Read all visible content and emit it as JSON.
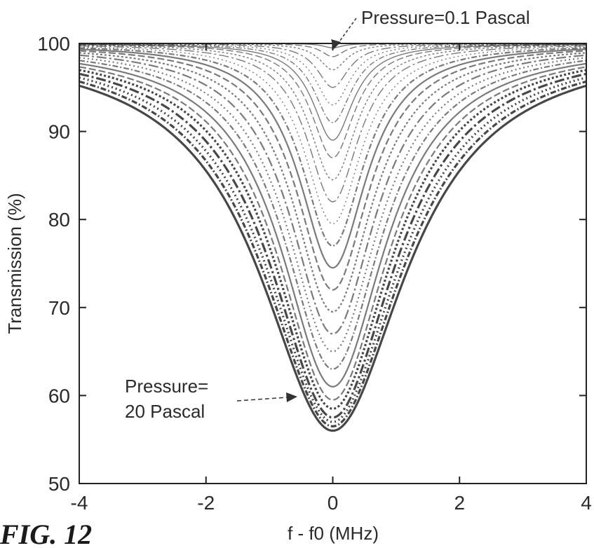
{
  "chart_data": {
    "type": "line",
    "xlabel": "f - f0 (MHz)",
    "ylabel": "Transmission (%)",
    "xlim": [
      -4,
      4
    ],
    "ylim": [
      50,
      100
    ],
    "xticks": [
      -4,
      -2,
      0,
      2,
      4
    ],
    "yticks": [
      50,
      60,
      70,
      80,
      90,
      100
    ],
    "x_tick_labels": [
      "-4",
      "-2",
      "0",
      "2",
      "4"
    ],
    "y_tick_labels": [
      "50",
      "60",
      "70",
      "80",
      "90",
      "100"
    ],
    "grid": false,
    "legend": "none",
    "curve_shape": "lorentzian",
    "line_color": "#333333",
    "series": [
      {
        "depth": 0.5,
        "hwhm": 0.18
      },
      {
        "depth": 1.5,
        "hwhm": 0.22
      },
      {
        "depth": 3,
        "hwhm": 0.26
      },
      {
        "depth": 5,
        "hwhm": 0.3
      },
      {
        "depth": 7,
        "hwhm": 0.33
      },
      {
        "depth": 9,
        "hwhm": 0.36
      },
      {
        "depth": 11,
        "hwhm": 0.39
      },
      {
        "depth": 13,
        "hwhm": 0.42
      },
      {
        "depth": 15.5,
        "hwhm": 0.46
      },
      {
        "depth": 18,
        "hwhm": 0.5
      },
      {
        "depth": 20.5,
        "hwhm": 0.55
      },
      {
        "depth": 23,
        "hwhm": 0.6
      },
      {
        "depth": 25.5,
        "hwhm": 0.65
      },
      {
        "depth": 28,
        "hwhm": 0.7
      },
      {
        "depth": 30.5,
        "hwhm": 0.76
      },
      {
        "depth": 33,
        "hwhm": 0.82
      },
      {
        "depth": 35,
        "hwhm": 0.88
      },
      {
        "depth": 37,
        "hwhm": 0.94
      },
      {
        "depth": 39,
        "hwhm": 1.0
      },
      {
        "depth": 40.5,
        "hwhm": 1.06
      },
      {
        "depth": 41.5,
        "hwhm": 1.12
      },
      {
        "depth": 42.5,
        "hwhm": 1.19
      },
      {
        "depth": 43,
        "hwhm": 1.26
      },
      {
        "depth": 43.5,
        "hwhm": 1.33
      },
      {
        "depth": 44,
        "hwhm": 1.4
      }
    ],
    "annotations": [
      {
        "text": "Pressure=0.1 Pascal"
      },
      {
        "text_line1": "Pressure=",
        "text_line2": "20 Pascal"
      }
    ],
    "figure_label": "FIG. 12"
  }
}
